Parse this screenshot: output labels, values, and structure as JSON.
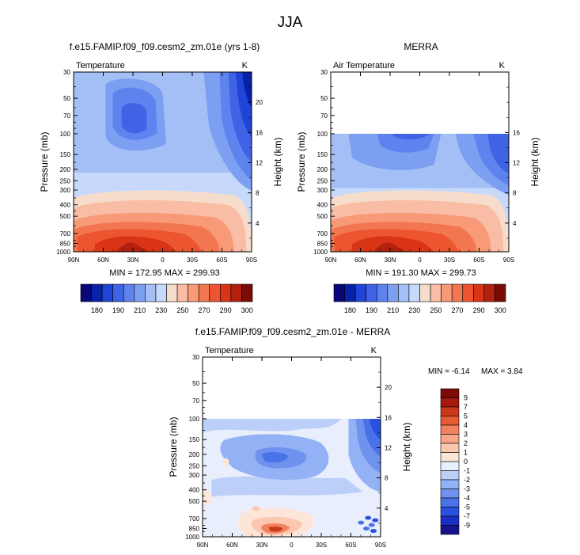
{
  "page_title": "JJA",
  "colors": {
    "scale": [
      "#08077a",
      "#0722a8",
      "#1f45d6",
      "#3f63e4",
      "#5f83ee",
      "#7d9ff2",
      "#a3bff6",
      "#c6d9fb",
      "#f6dccb",
      "#f9bca4",
      "#f89a78",
      "#f2764f",
      "#ec5530",
      "#d93415",
      "#b3200d",
      "#7a0c07"
    ],
    "diff_scale": [
      "#14148c",
      "#1c2fc4",
      "#2952df",
      "#4a72e8",
      "#6f92ef",
      "#93b1f5",
      "#bccff9",
      "#e8eefc",
      "#fde6d8",
      "#fbc7af",
      "#f8a786",
      "#f2825e",
      "#e65a36",
      "#c9381b",
      "#a51a0d",
      "#7e0b05"
    ]
  },
  "chart_data": [
    {
      "id": "model",
      "type": "heatmap",
      "title": "f.e15.FAMIP.f09_f09.cesm2_zm.01e (yrs 1-8)",
      "left_label": "Temperature",
      "unit_label": "K",
      "ylabel": "Pressure (mb)",
      "ylabel_right": "Height (km)",
      "stats": "MIN = 172.95  MAX = 299.93",
      "x_ticks": [
        "90N",
        "60N",
        "30N",
        "0",
        "30S",
        "60S",
        "90S"
      ],
      "y_ticks": [
        30,
        50,
        70,
        100,
        150,
        200,
        250,
        300,
        400,
        500,
        700,
        850,
        1000
      ],
      "height_ticks": [
        20,
        16,
        12,
        8,
        4
      ],
      "data_top_mb": 30,
      "colorbar_labels": [
        "180",
        "190",
        "210",
        "230",
        "250",
        "270",
        "290",
        "300"
      ]
    },
    {
      "id": "obs",
      "type": "heatmap",
      "title": "MERRA",
      "left_label": "Air Temperature",
      "unit_label": "K",
      "ylabel": "Pressure (mb)",
      "ylabel_right": "Height (km)",
      "stats": "MIN = 191.30  MAX = 299.73",
      "x_ticks": [
        "90N",
        "60N",
        "30N",
        "0",
        "30S",
        "60S",
        "90S"
      ],
      "y_ticks": [
        30,
        50,
        70,
        100,
        150,
        200,
        250,
        300,
        400,
        500,
        700,
        850,
        1000
      ],
      "height_ticks": [
        16,
        12,
        8,
        4
      ],
      "data_top_mb": 100,
      "colorbar_labels": [
        "180",
        "190",
        "210",
        "230",
        "250",
        "270",
        "290",
        "300"
      ]
    },
    {
      "id": "diff",
      "type": "heatmap",
      "title": "f.e15.FAMIP.f09_f09.cesm2_zm.01e - MERRA",
      "left_label": "Temperature",
      "unit_label": "K",
      "ylabel": "Pressure (mb)",
      "ylabel_right": "Height (km)",
      "stats_min": "MIN = -6.14",
      "stats_max": "MAX =  3.84",
      "x_ticks": [
        "90N",
        "60N",
        "30N",
        "0",
        "30S",
        "60S",
        "90S"
      ],
      "y_ticks": [
        30,
        50,
        70,
        100,
        150,
        200,
        250,
        300,
        400,
        500,
        700,
        850,
        1000
      ],
      "height_ticks": [
        20,
        16,
        12,
        8,
        4
      ],
      "data_top_mb": 100,
      "colorbar_labels": [
        "9",
        "7",
        "5",
        "4",
        "3",
        "2",
        "1",
        "0",
        "-1",
        "-2",
        "-3",
        "-4",
        "-5",
        "-7",
        "-9"
      ]
    }
  ]
}
